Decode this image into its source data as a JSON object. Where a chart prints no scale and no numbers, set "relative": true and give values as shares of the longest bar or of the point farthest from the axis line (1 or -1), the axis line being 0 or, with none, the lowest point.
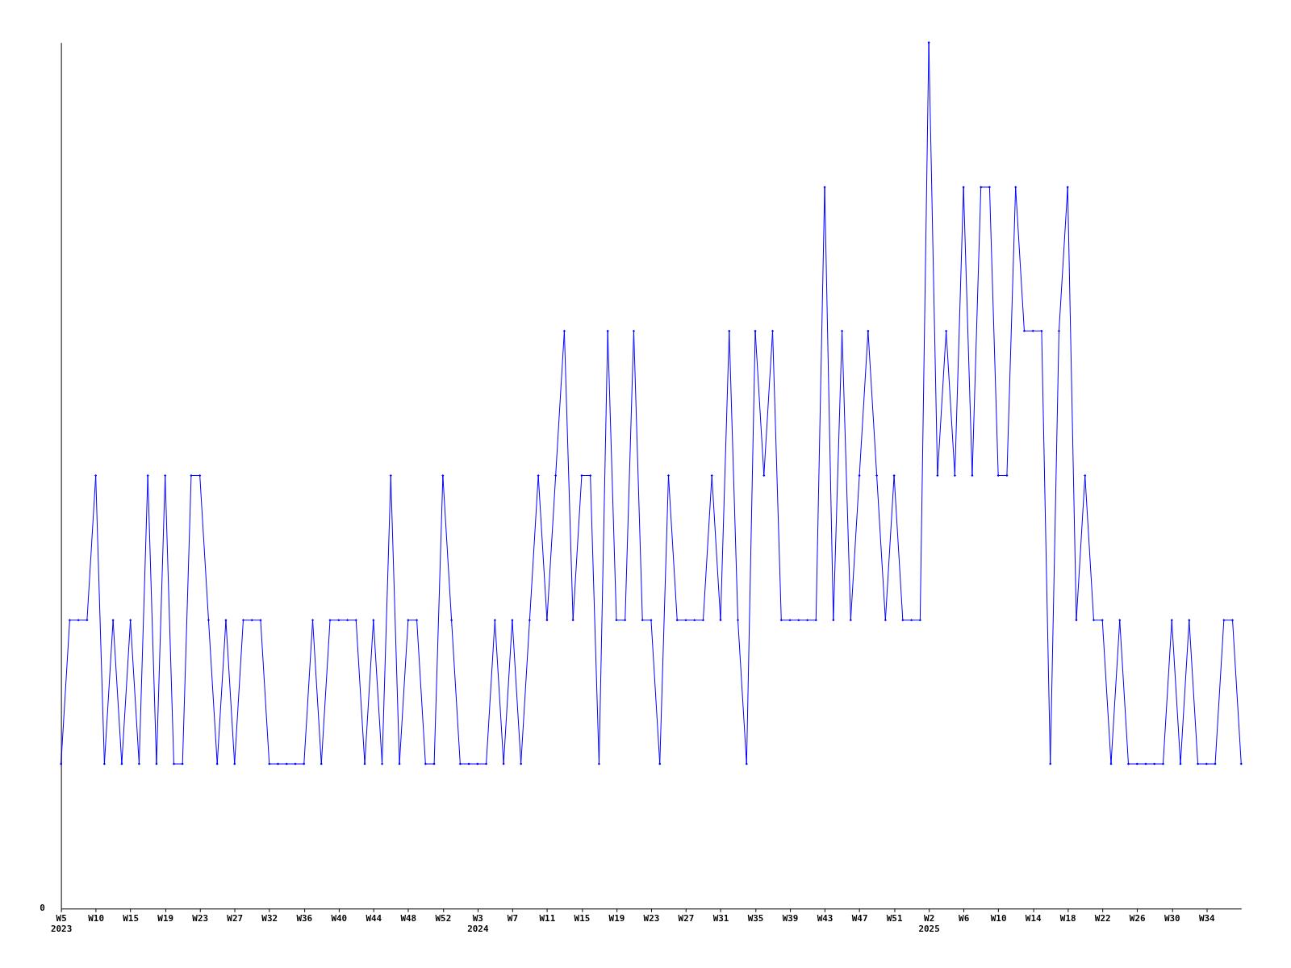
{
  "chart_data": {
    "type": "line",
    "relative": true,
    "marker": "diamond",
    "line_style": "solid",
    "grid": false,
    "annotations": [
      "0"
    ],
    "categories": [
      "W5\n2023",
      null,
      null,
      null,
      "W10",
      null,
      null,
      null,
      "W15",
      null,
      null,
      null,
      "W19",
      null,
      null,
      null,
      "W23",
      null,
      null,
      null,
      "W27",
      null,
      null,
      null,
      "W32",
      null,
      null,
      null,
      "W36",
      null,
      null,
      null,
      "W40",
      null,
      null,
      null,
      "W44",
      null,
      null,
      null,
      "W48",
      null,
      null,
      null,
      "W52",
      null,
      null,
      null,
      "W3\n2024",
      null,
      null,
      null,
      "W7",
      null,
      null,
      null,
      "W11",
      null,
      null,
      null,
      "W15",
      null,
      null,
      null,
      "W19",
      null,
      null,
      null,
      "W23",
      null,
      null,
      null,
      "W27",
      null,
      null,
      null,
      "W31",
      null,
      null,
      null,
      "W35",
      null,
      null,
      null,
      "W39",
      null,
      null,
      null,
      "W43",
      null,
      null,
      null,
      "W47",
      null,
      null,
      null,
      "W51",
      null,
      null,
      null,
      "W2\n2025",
      null,
      null,
      null,
      "W6",
      null,
      null,
      null,
      "W10",
      null,
      null,
      null,
      "W14",
      null,
      null,
      null,
      "W18",
      null,
      null,
      null,
      "W22",
      null,
      null,
      null,
      "W26",
      null,
      null,
      null,
      "W30",
      null,
      null,
      null,
      "W34",
      null,
      null,
      null,
      null
    ],
    "series": [
      {
        "color": "#0000ff",
        "values": [
          0.167,
          0.333,
          0.333,
          0.333,
          0.5,
          0.167,
          0.333,
          0.167,
          0.333,
          0.167,
          0.5,
          0.167,
          0.5,
          0.167,
          0.167,
          0.5,
          0.5,
          0.333,
          0.167,
          0.333,
          0.167,
          0.333,
          0.333,
          0.333,
          0.167,
          0.167,
          0.167,
          0.167,
          0.167,
          0.333,
          0.167,
          0.333,
          0.333,
          0.333,
          0.333,
          0.167,
          0.333,
          0.167,
          0.5,
          0.167,
          0.333,
          0.333,
          0.167,
          0.167,
          0.5,
          0.333,
          0.167,
          0.167,
          0.167,
          0.167,
          0.333,
          0.167,
          0.333,
          0.167,
          0.333,
          0.5,
          0.333,
          0.5,
          0.667,
          0.333,
          0.5,
          0.5,
          0.167,
          0.667,
          0.333,
          0.333,
          0.667,
          0.333,
          0.333,
          0.167,
          0.5,
          0.333,
          0.333,
          0.333,
          0.333,
          0.5,
          0.333,
          0.667,
          0.333,
          0.167,
          0.667,
          0.5,
          0.667,
          0.333,
          0.333,
          0.333,
          0.333,
          0.333,
          0.833,
          0.333,
          0.667,
          0.333,
          0.5,
          0.667,
          0.5,
          0.333,
          0.5,
          0.333,
          0.333,
          0.333,
          1,
          0.5,
          0.667,
          0.5,
          0.833,
          0.5,
          0.833,
          0.833,
          0.5,
          0.5,
          0.833,
          0.667,
          0.667,
          0.667,
          0.167,
          0.667,
          0.833,
          0.333,
          0.5,
          0.333,
          0.333,
          0.167,
          0.333,
          0.167,
          0.167,
          0.167,
          0.167,
          0.167,
          0.333,
          0.167,
          0.333,
          0.167,
          0.167,
          0.167,
          0.333,
          0.333,
          0.167
        ]
      }
    ]
  }
}
